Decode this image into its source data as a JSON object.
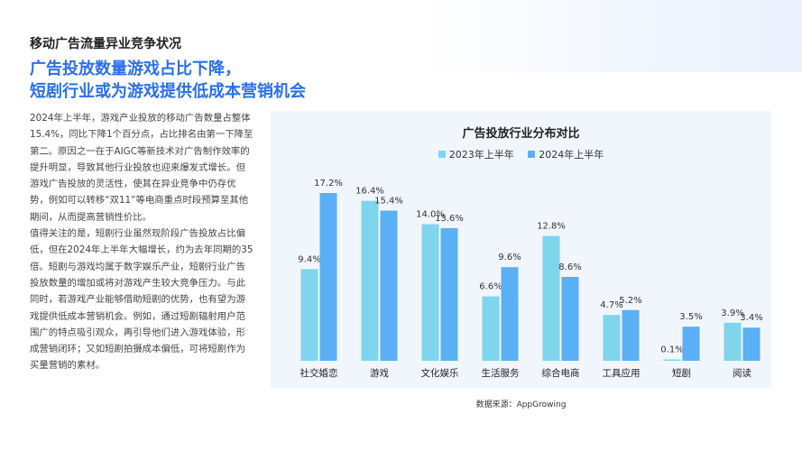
{
  "page": {
    "kicker": "移动广告流量异业竞争状况",
    "headline": [
      "广告投放数量游戏占比下降，",
      "短剧行业或为游戏提供低成本营销机会"
    ],
    "paragraphs": [
      "2024年上半年，游戏产业投放的移动广告数量占整体15.4%，同比下降1个百分点，占比排名由第一下降至第二。原因之一在于AIGC等新技术对广告制作效率的提升明显，导致其他行业投放也迎来爆发式增长。但游戏广告投放的灵活性，使其在异业竞争中仍存优势，例如可以转移“双11”等电商重点时段预算至其他期间，从而提高营销性价比。",
      "值得关注的是，短剧行业虽然现阶段广告投放占比偏低，但在2024年上半年大幅增长，约为去年同期的35倍。短剧与游戏均属于数字娱乐产业，短剧行业广告投放数量的增加或将对游戏产生较大竞争压力。与此同时，若游戏产业能够借助短剧的优势，也有望为游戏提供低成本营销机会。例如，通过短剧辐射用户范围广的特点吸引观众，再引导他们进入游戏体验，形成营销闭环；又如短剧拍摄成本偏低，可将短剧作为买量营销的素材。"
    ],
    "source": "数据来源：AppGrowing"
  },
  "chart_data": {
    "type": "bar",
    "title": "广告投放行业分布对比",
    "categories": [
      "社交婚恋",
      "游戏",
      "文化娱乐",
      "生活服务",
      "综合电商",
      "工具应用",
      "短剧",
      "阅读"
    ],
    "series": [
      {
        "name": "2023年上半年",
        "color": "#7fd4ee",
        "values": [
          9.4,
          16.4,
          14.0,
          6.6,
          12.8,
          4.7,
          0.1,
          3.9
        ]
      },
      {
        "name": "2024年上半年",
        "color": "#5ab0f5",
        "values": [
          17.2,
          15.4,
          13.6,
          9.6,
          8.6,
          5.2,
          3.5,
          3.4
        ]
      }
    ],
    "value_suffix": "%",
    "ylim": [
      0,
      17.2
    ],
    "grid": false,
    "legend": "top"
  }
}
